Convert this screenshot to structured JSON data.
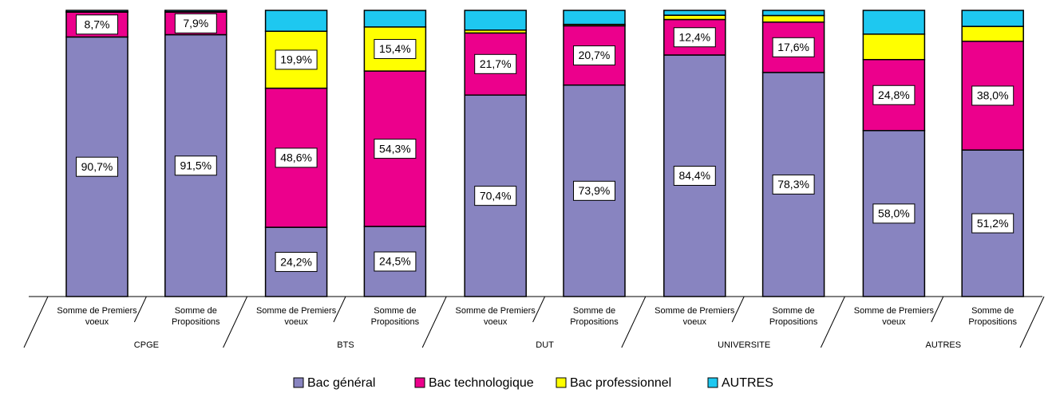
{
  "chart_data": {
    "type": "stacked-bar",
    "groups": [
      "CPGE",
      "BTS",
      "DUT",
      "UNIVERSITE",
      "AUTRES"
    ],
    "categories": [
      "Somme de Premiers voeux",
      "Somme de Propositions",
      "Somme de Premiers voeux",
      "Somme de Propositions",
      "Somme de Premiers voeux",
      "Somme de Propositions",
      "Somme de Premiers voeux",
      "Somme de Propositions",
      "Somme de Premiers voeux",
      "Somme de Propositions"
    ],
    "ylim": [
      0,
      100
    ],
    "legend": "bottom",
    "series": [
      {
        "name": "Bac général",
        "color": "#8884c0",
        "values": [
          90.7,
          91.5,
          24.2,
          24.5,
          70.4,
          73.9,
          84.4,
          78.3,
          58.0,
          51.2
        ],
        "value_labels": [
          "90,7%",
          "91,5%",
          "24,2%",
          "24,5%",
          "70,4%",
          "73,9%",
          "84,4%",
          "78,3%",
          "58,0%",
          "51,2%"
        ]
      },
      {
        "name": "Bac technologique",
        "color": "#ec008c",
        "values": [
          8.7,
          7.9,
          48.6,
          54.3,
          21.7,
          20.7,
          12.4,
          17.6,
          24.8,
          38.0
        ],
        "value_labels": [
          "8,7%",
          "7,9%",
          "48,6%",
          "54,3%",
          "21,7%",
          "20,7%",
          "12,4%",
          "17,6%",
          "24,8%",
          "38,0%"
        ]
      },
      {
        "name": "Bac professionnel",
        "color": "#ffff00",
        "values": [
          0.1,
          0.1,
          19.9,
          15.4,
          1.0,
          0.5,
          1.5,
          2.3,
          8.9,
          5.2
        ],
        "value_labels": [
          null,
          null,
          "19,9%",
          "15,4%",
          null,
          null,
          null,
          null,
          null,
          null
        ]
      },
      {
        "name": "AUTRES",
        "color": "#1ec8f0",
        "values": [
          0.5,
          0.5,
          7.3,
          5.8,
          6.9,
          4.9,
          1.7,
          1.8,
          8.3,
          5.6
        ],
        "value_labels": [
          null,
          null,
          null,
          null,
          null,
          null,
          null,
          null,
          null,
          null
        ]
      }
    ]
  }
}
